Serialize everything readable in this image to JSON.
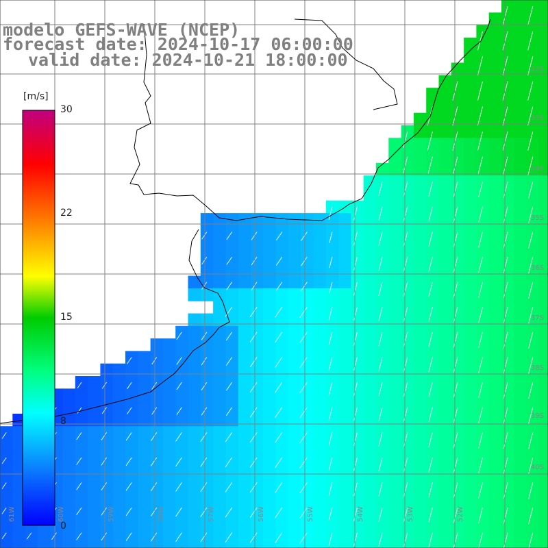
{
  "title": {
    "line1": "modelo GEFS-WAVE (NCEP)",
    "line2": "forecast date: 2024-10-17 06:00:00",
    "line3": "valid date: 2024-10-21 18:00:00"
  },
  "colorbar": {
    "unit": "[m/s]",
    "ticks": [
      "30",
      "22",
      "15",
      "8",
      "0"
    ],
    "stops": [
      {
        "value": 0,
        "color": "#0000ff"
      },
      {
        "value": 4,
        "color": "#0a78ff"
      },
      {
        "value": 8,
        "color": "#00ffff"
      },
      {
        "value": 11,
        "color": "#00ff80"
      },
      {
        "value": 15,
        "color": "#00cc00"
      },
      {
        "value": 18,
        "color": "#ffff00"
      },
      {
        "value": 22,
        "color": "#ff8000"
      },
      {
        "value": 26,
        "color": "#ff0000"
      },
      {
        "value": 30,
        "color": "#c0007f"
      }
    ]
  },
  "map": {
    "lat_labels": [
      "32S",
      "33S",
      "34S",
      "35S",
      "36S",
      "37S",
      "38S",
      "39S",
      "40S"
    ],
    "lon_labels": [
      "61W",
      "60W",
      "59W",
      "58W",
      "57W",
      "56W",
      "55W",
      "54W",
      "53W",
      "52W"
    ],
    "land_color": "#ffffff",
    "grid_color": "#808080",
    "coast_color": "#000000",
    "arrow_color": "#ffffff"
  }
}
